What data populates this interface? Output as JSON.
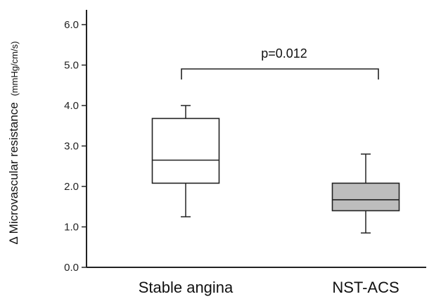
{
  "chart_data": {
    "type": "box",
    "title": "",
    "xlabel": "",
    "ylabel": "Δ Microvascular resistance",
    "ylabel_unit": "(mmHg/cm/s)",
    "ylim": [
      0.0,
      6.0
    ],
    "yticks": [
      0.0,
      1.0,
      2.0,
      3.0,
      4.0,
      5.0,
      6.0
    ],
    "ytick_labels": [
      "0.0",
      "1.0",
      "2.0",
      "3.0",
      "4.0",
      "5.0",
      "6.0"
    ],
    "grid": false,
    "categories": [
      "Stable angina",
      "NST-ACS"
    ],
    "boxes": [
      {
        "category": "Stable angina",
        "whisker_low": 1.25,
        "q1": 2.08,
        "median": 2.65,
        "q3": 3.68,
        "whisker_high": 4.0,
        "fill": "#ffffff"
      },
      {
        "category": "NST-ACS",
        "whisker_low": 0.85,
        "q1": 1.4,
        "median": 1.67,
        "q3": 2.08,
        "whisker_high": 2.8,
        "fill": "#bdbdbd"
      }
    ],
    "annotation": {
      "text": "p=0.012",
      "between": [
        "Stable angina",
        "NST-ACS"
      ]
    },
    "colors": {
      "axis": "#222222",
      "box_stroke": "#222222"
    }
  }
}
